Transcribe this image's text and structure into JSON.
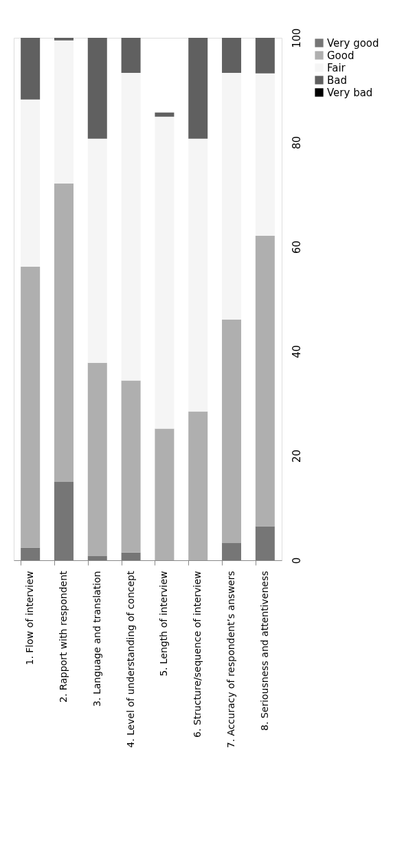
{
  "chart_data": {
    "type": "bar",
    "stacked": true,
    "categories": [
      "1. Flow of interview",
      "2. Rapport with respondent",
      "3. Language and translation",
      "4. Level of understanding of concept",
      "5. Length of interview",
      "6. Structure/sequence of interview",
      "7. Accuracy of respondent’s answers",
      "8. Seriousness and attentiveness"
    ],
    "series": [
      {
        "name": "Very good",
        "color": "#767676",
        "values": [
          2.4,
          15.0,
          0.8,
          1.5,
          0,
          0,
          3.3,
          6.5
        ]
      },
      {
        "name": "Good",
        "color": "#afafaf",
        "values": [
          53.8,
          57.1,
          37.0,
          32.9,
          25.2,
          28.5,
          42.8,
          55.6
        ]
      },
      {
        "name": "Fair",
        "color": "#f5f5f5",
        "values": [
          32.0,
          27.4,
          42.9,
          58.9,
          59.7,
          52.2,
          47.2,
          31.1
        ]
      },
      {
        "name": "Bad",
        "color": "#606060",
        "values": [
          11.8,
          0.5,
          19.3,
          6.7,
          0.8,
          19.3,
          6.7,
          6.8
        ]
      },
      {
        "name": "Very bad",
        "color": "#000000",
        "values": [
          0,
          0,
          0,
          0,
          0,
          0,
          0,
          0
        ]
      }
    ],
    "ylim": [
      0,
      100
    ],
    "yticks": [
      0,
      20,
      40,
      60,
      80,
      100
    ],
    "grid": false,
    "legend": "right"
  }
}
